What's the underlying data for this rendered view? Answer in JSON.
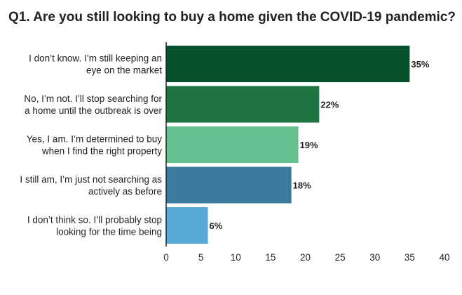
{
  "chart_data": {
    "type": "bar",
    "orientation": "horizontal",
    "title": "Q1. Are you still looking to buy a home given the COVID-19 pandemic?",
    "categories": [
      [
        "I don’t know. I’m still keeping an",
        "eye on the market"
      ],
      [
        "No, I’m not. I’ll stop searching for",
        "a home until the outbreak is over"
      ],
      [
        "Yes, I am. I’m determined to buy",
        "when I find the right property"
      ],
      [
        "I still am, I’m just not searching as",
        "actively as before"
      ],
      [
        "I don’t think so. I’ll probably stop",
        "looking for the time being"
      ]
    ],
    "values": [
      35,
      22,
      19,
      18,
      6
    ],
    "value_labels": [
      "35%",
      "22%",
      "19%",
      "18%",
      "6%"
    ],
    "xlim": [
      0,
      40
    ],
    "xticks": [
      "0",
      "5",
      "10",
      "15",
      "20",
      "25",
      "30",
      "35",
      "40"
    ],
    "xtick_values": [
      0,
      5,
      10,
      15,
      20,
      25,
      30,
      35,
      40
    ],
    "colors": [
      "#06512b",
      "#1f7444",
      "#66c190",
      "#3a7b9e",
      "#57a9d6"
    ],
    "grid": false
  }
}
